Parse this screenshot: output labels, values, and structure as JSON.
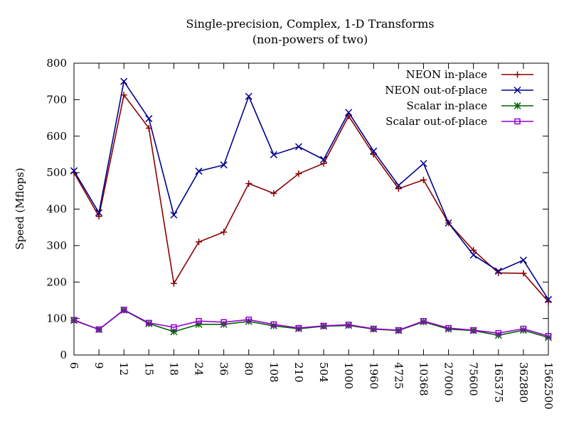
{
  "chart_data": {
    "type": "line",
    "title": "Single-precision, Complex, 1-D Transforms",
    "subtitle": "(non-powers of two)",
    "xlabel": "",
    "ylabel": "Speed (Mflops)",
    "ylim": [
      0,
      800
    ],
    "yticks": [
      0,
      100,
      200,
      300,
      400,
      500,
      600,
      700,
      800
    ],
    "grid": false,
    "legend_position": "top-right",
    "categories": [
      "6",
      "9",
      "12",
      "15",
      "18",
      "24",
      "36",
      "80",
      "108",
      "210",
      "504",
      "1000",
      "1960",
      "4725",
      "10368",
      "27000",
      "75600",
      "165375",
      "362880",
      "1562500"
    ],
    "series": [
      {
        "name": "NEON in-place",
        "color": "#8b0000",
        "marker": "plus",
        "values": [
          500,
          380,
          713,
          622,
          196,
          310,
          337,
          470,
          443,
          497,
          525,
          655,
          550,
          456,
          480,
          362,
          287,
          225,
          224,
          146
        ]
      },
      {
        "name": "NEON out-of-place",
        "color": "#00008b",
        "marker": "cross",
        "values": [
          505,
          390,
          750,
          648,
          384,
          504,
          521,
          709,
          549,
          571,
          536,
          665,
          559,
          465,
          525,
          362,
          274,
          230,
          260,
          152
        ]
      },
      {
        "name": "Scalar in-place",
        "color": "#006400",
        "marker": "star",
        "values": [
          95,
          70,
          123,
          86,
          64,
          84,
          84,
          92,
          80,
          72,
          79,
          81,
          71,
          67,
          91,
          71,
          67,
          54,
          68,
          48
        ]
      },
      {
        "name": "Scalar out-of-place",
        "color": "#9400d3",
        "marker": "box",
        "values": [
          96,
          70,
          124,
          88,
          76,
          93,
          90,
          97,
          84,
          74,
          80,
          83,
          72,
          68,
          93,
          74,
          68,
          60,
          72,
          52
        ]
      }
    ]
  }
}
